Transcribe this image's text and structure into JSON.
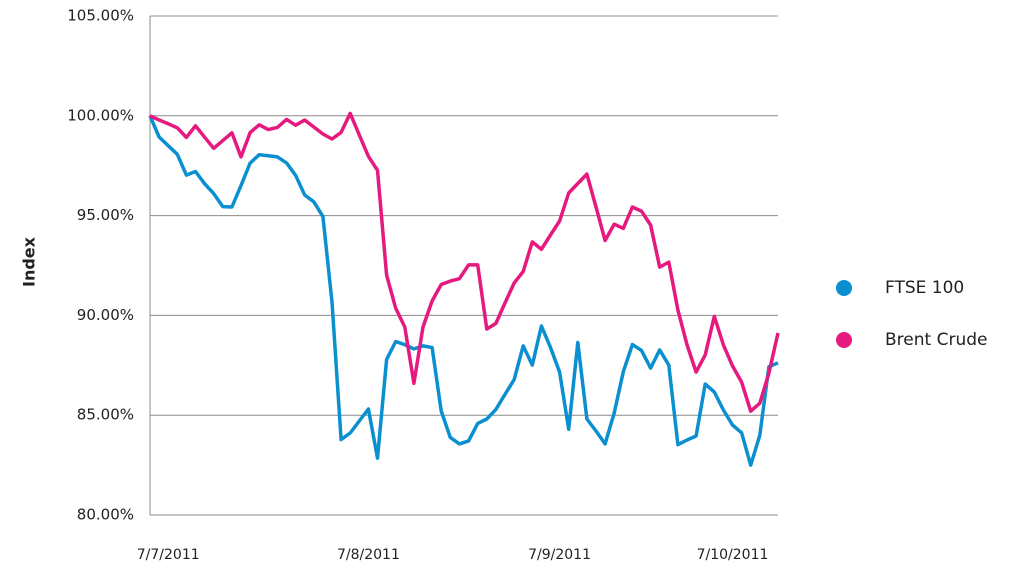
{
  "chart_data": {
    "type": "line",
    "categories": [
      null,
      null,
      "7/7/2011",
      null,
      null,
      null,
      null,
      null,
      null,
      null,
      null,
      null,
      null,
      null,
      null,
      null,
      null,
      null,
      null,
      null,
      null,
      null,
      null,
      null,
      "7/8/2011",
      null,
      null,
      null,
      null,
      null,
      null,
      null,
      null,
      null,
      null,
      null,
      null,
      null,
      null,
      null,
      null,
      null,
      null,
      null,
      null,
      "7/9/2011",
      null,
      null,
      null,
      null,
      null,
      null,
      null,
      null,
      null,
      null,
      null,
      null,
      null,
      null,
      null,
      null,
      null,
      null,
      "7/10/2011",
      null,
      null,
      null,
      null,
      null
    ],
    "y_label": "Index",
    "series": [
      {
        "name": "FTSE 100",
        "color": "#0a8fd1",
        "values": [
          100.0,
          98.94,
          98.5,
          98.07,
          97.03,
          97.21,
          96.6,
          96.1,
          95.45,
          95.43,
          96.51,
          97.63,
          98.05,
          98.0,
          97.94,
          97.64,
          97.02,
          96.03,
          95.69,
          94.96,
          90.67,
          83.78,
          84.11,
          84.71,
          85.31,
          82.85,
          87.79,
          88.69,
          88.53,
          88.32,
          88.47,
          88.39,
          85.21,
          83.89,
          83.56,
          83.71,
          84.59,
          84.81,
          85.29,
          86.04,
          86.78,
          88.47,
          87.51,
          89.47,
          88.39,
          87.16,
          84.3,
          88.64,
          84.81,
          84.21,
          83.56,
          85.11,
          87.18,
          88.54,
          88.24,
          87.36,
          88.27,
          87.51,
          83.52,
          83.76,
          83.96,
          86.56,
          86.16,
          85.26,
          84.51,
          84.12,
          82.5,
          84.0,
          87.43,
          87.62
        ]
      },
      {
        "name": "Brent Crude",
        "color": "#e6197f",
        "values": [
          100.0,
          99.79,
          99.6,
          99.4,
          98.92,
          99.5,
          98.93,
          98.37,
          98.76,
          99.15,
          97.94,
          99.16,
          99.55,
          99.31,
          99.42,
          99.82,
          99.53,
          99.79,
          99.44,
          99.09,
          98.84,
          99.17,
          100.12,
          99.04,
          97.97,
          97.27,
          92.02,
          90.36,
          89.42,
          86.6,
          89.42,
          90.72,
          91.55,
          91.72,
          91.84,
          92.53,
          92.53,
          89.32,
          89.6,
          90.62,
          91.62,
          92.2,
          93.68,
          93.31,
          94.03,
          94.73,
          96.13,
          96.61,
          97.08,
          95.43,
          93.75,
          94.57,
          94.36,
          95.43,
          95.22,
          94.53,
          92.42,
          92.67,
          90.27,
          88.53,
          87.16,
          88.02,
          89.95,
          88.52,
          87.47,
          86.66,
          85.2,
          85.6,
          87.11,
          89.12
        ]
      }
    ],
    "ylim": [
      80,
      105
    ],
    "yticks": [
      {
        "value": 80,
        "label": "80.00%"
      },
      {
        "value": 85,
        "label": "85.00%"
      },
      {
        "value": 90,
        "label": "90.00%"
      },
      {
        "value": 95,
        "label": "95.00%"
      },
      {
        "value": 100,
        "label": "100.00%"
      },
      {
        "value": 105,
        "label": "105.00%"
      }
    ],
    "grid": true,
    "legend": "right"
  }
}
